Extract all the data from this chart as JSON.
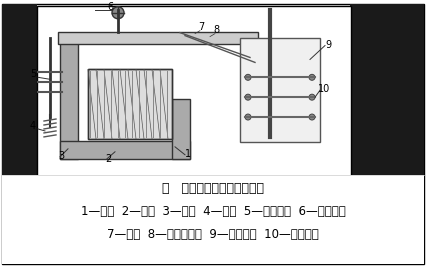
{
  "title_line": "图   电磁式继电器结构示意图",
  "caption_line1": "1—线圈  2—铁心  3—磁轭  4—弹簧  5—调节螺母  6—调节螺钉",
  "caption_line2": "7—衔铁  8—非磁性垫片  9—动断触点  10—动合触点",
  "bg_color": "#ffffff",
  "border_color": "#000000",
  "diagram_bg": "#f5f5f5",
  "text_color": "#000000",
  "font_size_caption": 8.5,
  "font_size_title": 9.0,
  "figsize": [
    4.26,
    2.66
  ],
  "dpi": 100
}
